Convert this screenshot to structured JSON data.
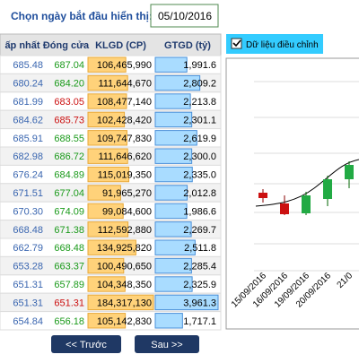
{
  "header": {
    "label": "Chọn ngày bắt đầu hiển thị:",
    "date": "05/10/2016"
  },
  "table": {
    "columns": [
      "ấp nhất",
      "Đóng cửa",
      "KLGD (CP)",
      "GTGD (tỷ)"
    ],
    "rows": [
      [
        "685.48",
        "687.04",
        "106,465,990",
        "1,991.6"
      ],
      [
        "680.24",
        "684.20",
        "111,644,670",
        "2,809.2"
      ],
      [
        "681.99",
        "683.05",
        "108,477,140",
        "2,213.8"
      ],
      [
        "684.62",
        "685.73",
        "102,428,420",
        "2,301.1"
      ],
      [
        "685.91",
        "688.55",
        "109,747,830",
        "2,619.9"
      ],
      [
        "682.98",
        "686.72",
        "111,646,620",
        "2,300.0"
      ],
      [
        "676.24",
        "684.89",
        "115,019,350",
        "2,335.0"
      ],
      [
        "671.51",
        "677.04",
        "91,965,270",
        "2,012.8"
      ],
      [
        "670.30",
        "674.09",
        "99,084,600",
        "1,986.6"
      ],
      [
        "668.48",
        "671.38",
        "112,592,880",
        "2,269.7"
      ],
      [
        "662.79",
        "668.48",
        "134,925,820",
        "2,511.8"
      ],
      [
        "653.28",
        "663.37",
        "100,490,650",
        "2,285.4"
      ],
      [
        "651.31",
        "657.89",
        "104,348,350",
        "2,325.9"
      ],
      [
        "651.31",
        "651.31",
        "184,317,130",
        "3,961.3"
      ],
      [
        "654.84",
        "656.18",
        "105,142,830",
        "1,717.1"
      ]
    ],
    "close_colors": [
      "#1a9a1a",
      "#1a9a1a",
      "#cc1111",
      "#cc1111",
      "#1a9a1a",
      "#1a9a1a",
      "#1a9a1a",
      "#1a9a1a",
      "#1a9a1a",
      "#1a9a1a",
      "#1a9a1a",
      "#1a9a1a",
      "#1a9a1a",
      "#cc1111",
      "#1a9a1a"
    ]
  },
  "chart": {
    "checkbox": "Dữ liệu điều chỉnh",
    "dates": [
      "15/09/2016",
      "16/09/2016",
      "19/09/2016",
      "20/09/2016",
      "21/0"
    ]
  },
  "nav": {
    "prev": "<< Trước",
    "next": "Sau >>"
  }
}
